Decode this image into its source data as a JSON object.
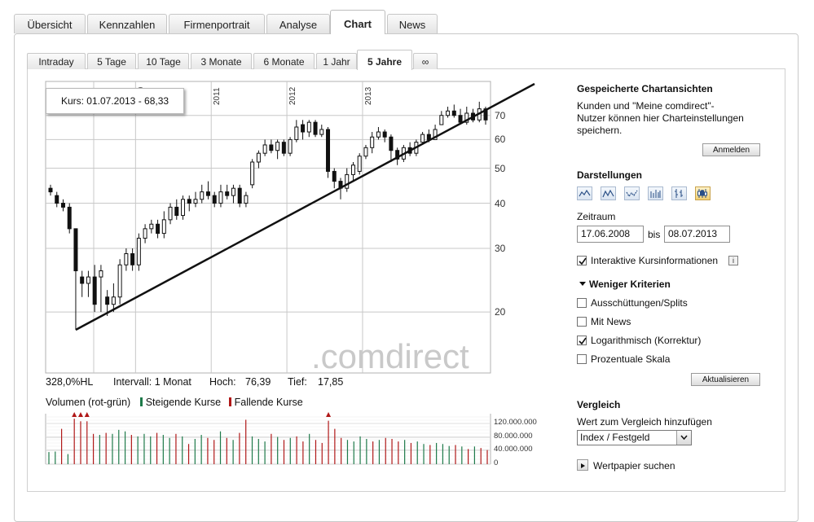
{
  "top_tabs": [
    {
      "label": "Übersicht",
      "active": false
    },
    {
      "label": "Kennzahlen",
      "active": false
    },
    {
      "label": "Firmenportrait",
      "active": false
    },
    {
      "label": "Analyse",
      "active": false
    },
    {
      "label": "Chart",
      "active": true
    },
    {
      "label": "News",
      "active": false
    }
  ],
  "range_tabs": [
    {
      "label": "Intraday",
      "active": false
    },
    {
      "label": "5 Tage",
      "active": false
    },
    {
      "label": "10 Tage",
      "active": false
    },
    {
      "label": "3 Monate",
      "active": false
    },
    {
      "label": "6 Monate",
      "active": false
    },
    {
      "label": "1 Jahr",
      "active": false
    },
    {
      "label": "5 Jahre",
      "active": true
    },
    {
      "label": "∞",
      "active": false
    }
  ],
  "tooltip": {
    "text": "Kurs: 01.07.2013 - 68,33"
  },
  "watermark": ".comdirect",
  "chart_data": {
    "type": "candlestick",
    "scale": "log",
    "ylim": [
      17,
      80
    ],
    "ytick_labels": [
      "20",
      "30",
      "40",
      "50",
      "60",
      "70"
    ],
    "xtick_labels": [
      "2010",
      "2011",
      "2012",
      "2013"
    ],
    "candles": [
      {
        "o": 44,
        "c": 43,
        "h": 45,
        "l": 42
      },
      {
        "o": 42,
        "c": 40,
        "h": 43,
        "l": 39
      },
      {
        "o": 40,
        "c": 39,
        "h": 41,
        "l": 38
      },
      {
        "o": 39,
        "c": 34,
        "h": 40,
        "l": 33
      },
      {
        "o": 34,
        "c": 26,
        "h": 34,
        "l": 17.85
      },
      {
        "o": 25,
        "c": 24,
        "h": 26,
        "l": 22
      },
      {
        "o": 24,
        "c": 25,
        "h": 26,
        "l": 22
      },
      {
        "o": 25,
        "c": 21,
        "h": 27,
        "l": 20
      },
      {
        "o": 25,
        "c": 26,
        "h": 27,
        "l": 20
      },
      {
        "o": 22,
        "c": 21,
        "h": 23,
        "l": 19.5
      },
      {
        "o": 21,
        "c": 22,
        "h": 24,
        "l": 20
      },
      {
        "o": 22,
        "c": 27,
        "h": 28,
        "l": 21
      },
      {
        "o": 27,
        "c": 29,
        "h": 30,
        "l": 26
      },
      {
        "o": 29,
        "c": 27,
        "h": 30,
        "l": 26
      },
      {
        "o": 27,
        "c": 32,
        "h": 33,
        "l": 26
      },
      {
        "o": 32,
        "c": 34,
        "h": 35,
        "l": 31
      },
      {
        "o": 34,
        "c": 35,
        "h": 36,
        "l": 33
      },
      {
        "o": 35,
        "c": 33,
        "h": 36,
        "l": 32
      },
      {
        "o": 33,
        "c": 36,
        "h": 38,
        "l": 32
      },
      {
        "o": 36,
        "c": 39,
        "h": 40,
        "l": 35
      },
      {
        "o": 39,
        "c": 37,
        "h": 41,
        "l": 36
      },
      {
        "o": 37,
        "c": 41,
        "h": 42,
        "l": 36
      },
      {
        "o": 41,
        "c": 40,
        "h": 42,
        "l": 38
      },
      {
        "o": 40,
        "c": 41,
        "h": 43,
        "l": 39
      },
      {
        "o": 41,
        "c": 43,
        "h": 45,
        "l": 40
      },
      {
        "o": 43,
        "c": 42,
        "h": 46,
        "l": 41
      },
      {
        "o": 42,
        "c": 40,
        "h": 43,
        "l": 39
      },
      {
        "o": 40,
        "c": 43,
        "h": 45,
        "l": 39
      },
      {
        "o": 43,
        "c": 42,
        "h": 45,
        "l": 41
      },
      {
        "o": 42,
        "c": 44,
        "h": 45,
        "l": 40
      },
      {
        "o": 44,
        "c": 40,
        "h": 45,
        "l": 39
      },
      {
        "o": 40,
        "c": 42,
        "h": 43,
        "l": 39
      },
      {
        "o": 45,
        "c": 52,
        "h": 53,
        "l": 44
      },
      {
        "o": 52,
        "c": 55,
        "h": 56,
        "l": 50
      },
      {
        "o": 55,
        "c": 58,
        "h": 60,
        "l": 54
      },
      {
        "o": 58,
        "c": 56,
        "h": 60,
        "l": 55
      },
      {
        "o": 56,
        "c": 59,
        "h": 60,
        "l": 53
      },
      {
        "o": 59,
        "c": 55,
        "h": 60,
        "l": 54
      },
      {
        "o": 55,
        "c": 60,
        "h": 61,
        "l": 54
      },
      {
        "o": 60,
        "c": 65,
        "h": 68,
        "l": 59
      },
      {
        "o": 66,
        "c": 63,
        "h": 68,
        "l": 60
      },
      {
        "o": 63,
        "c": 67,
        "h": 68,
        "l": 61
      },
      {
        "o": 67,
        "c": 62,
        "h": 68,
        "l": 61
      },
      {
        "o": 62,
        "c": 64,
        "h": 66,
        "l": 61
      },
      {
        "o": 64,
        "c": 49,
        "h": 65,
        "l": 47
      },
      {
        "o": 49,
        "c": 46,
        "h": 50,
        "l": 44
      },
      {
        "o": 46,
        "c": 44,
        "h": 47,
        "l": 41
      },
      {
        "o": 44,
        "c": 48,
        "h": 50,
        "l": 43
      },
      {
        "o": 48,
        "c": 51,
        "h": 52,
        "l": 46
      },
      {
        "o": 49,
        "c": 54,
        "h": 55,
        "l": 48
      },
      {
        "o": 54,
        "c": 57,
        "h": 58,
        "l": 53
      },
      {
        "o": 57,
        "c": 61,
        "h": 63,
        "l": 55
      },
      {
        "o": 61,
        "c": 63,
        "h": 65,
        "l": 60
      },
      {
        "o": 63,
        "c": 61,
        "h": 64,
        "l": 59
      },
      {
        "o": 61,
        "c": 56,
        "h": 62,
        "l": 52
      },
      {
        "o": 56,
        "c": 53,
        "h": 57,
        "l": 51
      },
      {
        "o": 53,
        "c": 57,
        "h": 58,
        "l": 52
      },
      {
        "o": 57,
        "c": 55,
        "h": 59,
        "l": 54
      },
      {
        "o": 55,
        "c": 59,
        "h": 60,
        "l": 54
      },
      {
        "o": 59,
        "c": 62,
        "h": 63,
        "l": 58
      },
      {
        "o": 62,
        "c": 60,
        "h": 64,
        "l": 59
      },
      {
        "o": 60,
        "c": 64,
        "h": 66,
        "l": 60
      },
      {
        "o": 66,
        "c": 70,
        "h": 72,
        "l": 66
      },
      {
        "o": 70,
        "c": 72,
        "h": 74,
        "l": 69
      },
      {
        "o": 72,
        "c": 70,
        "h": 75,
        "l": 69
      },
      {
        "o": 70,
        "c": 67,
        "h": 73,
        "l": 66
      },
      {
        "o": 67,
        "c": 71,
        "h": 74,
        "l": 66
      },
      {
        "o": 71,
        "c": 68,
        "h": 73,
        "l": 67
      },
      {
        "o": 68,
        "c": 73,
        "h": 76.39,
        "l": 67
      },
      {
        "o": 73,
        "c": 68,
        "h": 74,
        "l": 66
      }
    ],
    "trendline": {
      "from": 17.85,
      "to": 80
    }
  },
  "stats": {
    "hl": "328,0%HL",
    "interval": "Intervall: 1 Monat",
    "high_label": "Hoch:",
    "high_value": "76,39",
    "low_label": "Tief:",
    "low_value": "17,85"
  },
  "volume": {
    "title": "Volumen (rot-grün)",
    "rising": "Steigende Kurse",
    "falling": "Fallende Kurse",
    "green": "#1e7a4a",
    "red": "#b01818",
    "tick_labels": [
      "120.000.000",
      "80.000.000",
      "40.000.000",
      "0"
    ],
    "values": [
      24,
      25,
      70,
      20,
      90,
      85,
      85,
      60,
      58,
      62,
      60,
      68,
      65,
      58,
      55,
      60,
      55,
      62,
      58,
      52,
      60,
      55,
      40,
      50,
      58,
      52,
      48,
      65,
      52,
      48,
      62,
      88,
      55,
      50,
      45,
      60,
      54,
      48,
      52,
      55,
      45,
      60,
      48,
      42,
      86,
      70,
      52,
      48,
      45,
      55,
      50,
      45,
      48,
      52,
      50,
      45,
      48,
      42,
      45,
      40,
      38,
      42,
      40,
      36,
      38,
      35,
      30,
      35,
      32,
      28
    ],
    "colors": [
      "g",
      "g",
      "r",
      "g",
      "r",
      "r",
      "r",
      "r",
      "g",
      "r",
      "g",
      "g",
      "g",
      "r",
      "g",
      "g",
      "g",
      "r",
      "g",
      "g",
      "r",
      "g",
      "r",
      "g",
      "g",
      "r",
      "r",
      "g",
      "r",
      "g",
      "r",
      "r",
      "g",
      "g",
      "g",
      "r",
      "g",
      "r",
      "g",
      "r",
      "r",
      "g",
      "r",
      "r",
      "r",
      "r",
      "r",
      "g",
      "g",
      "g",
      "g",
      "r",
      "g",
      "r",
      "r",
      "r",
      "g",
      "r",
      "g",
      "g",
      "r",
      "g",
      "g",
      "g",
      "r",
      "g",
      "r",
      "g",
      "r",
      "r"
    ],
    "arrows": [
      4,
      5,
      6,
      44
    ]
  },
  "sidebar": {
    "saved_title": "Gespeicherte Chartansichten",
    "saved_text_1": "Kunden und \"Meine comdirect\"-",
    "saved_text_2": "Nutzer können hier Charteinstellungen",
    "saved_text_3": "speichern.",
    "login_button": "Anmelden",
    "darstellungen_title": "Darstellungen",
    "chart_types": [
      "line-chart-icon",
      "mountain-chart-icon",
      "dot-line-chart-icon",
      "ohlc-chart-icon",
      "hlc-chart-icon",
      "candlestick-chart-icon"
    ],
    "zeitraum_label": "Zeitraum",
    "date_from": "17.06.2008",
    "bis_label": "bis",
    "date_to": "08.07.2013",
    "interactive_label": "Interaktive Kursinformationen",
    "interactive_checked": true,
    "criteria_title": "Weniger Kriterien",
    "options": [
      {
        "label": "Ausschüttungen/Splits",
        "checked": false
      },
      {
        "label": "Mit News",
        "checked": false
      },
      {
        "label": "Logarithmisch (Korrektur)",
        "checked": true
      },
      {
        "label": "Prozentuale Skala",
        "checked": false
      }
    ],
    "update_button": "Aktualisieren",
    "vergleich_title": "Vergleich",
    "vergleich_label": "Wert zum Vergleich hinzufügen",
    "vergleich_select": "Index / Festgeld",
    "wertpapier_label": "Wertpapier suchen"
  }
}
